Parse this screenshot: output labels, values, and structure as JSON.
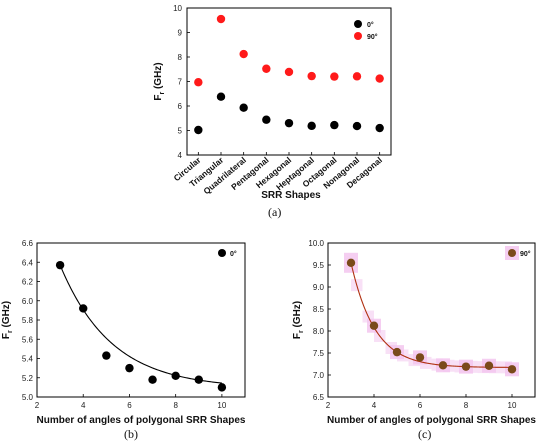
{
  "chart_data": [
    {
      "id": "a",
      "type": "scatter",
      "caption": "(a)",
      "xlabel": "SRR Shapes",
      "ylabel": "F_r (GHz)",
      "categories": [
        "Circular",
        "Triangular",
        "Quadrilateral",
        "Pentagonal",
        "Hexagonal",
        "Heptagonal",
        "Octagonal",
        "Nonagonal",
        "Decagonal"
      ],
      "ylim": [
        4,
        10
      ],
      "yticks": [
        4,
        5,
        6,
        7,
        8,
        9,
        10
      ],
      "grid": false,
      "legend_position": "top-right",
      "series": [
        {
          "name": "0°",
          "color": "#000000",
          "values": [
            5.02,
            6.38,
            5.93,
            5.44,
            5.3,
            5.19,
            5.22,
            5.18,
            5.1
          ]
        },
        {
          "name": "90°",
          "color": "#ff1a1a",
          "values": [
            6.97,
            9.55,
            8.12,
            7.52,
            7.39,
            7.22,
            7.2,
            7.21,
            7.12
          ]
        }
      ]
    },
    {
      "id": "b",
      "type": "scatter",
      "caption": "(b)",
      "xlabel": "Number of angles of polygonal SRR Shapes",
      "ylabel": "F_r (GHz)",
      "xlim": [
        2,
        11
      ],
      "ylim": [
        5.0,
        6.6
      ],
      "xticks": [
        2,
        4,
        6,
        8,
        10
      ],
      "yticks": [
        5.0,
        5.2,
        5.4,
        5.6,
        5.8,
        6.0,
        6.2,
        6.4,
        6.6
      ],
      "grid": false,
      "legend_position": "top-right",
      "series": [
        {
          "name": "0°",
          "color": "#000000",
          "x": [
            3,
            4,
            5,
            6,
            7,
            8,
            9,
            10
          ],
          "y": [
            6.37,
            5.92,
            5.43,
            5.3,
            5.18,
            5.22,
            5.18,
            5.1
          ]
        }
      ],
      "fit": {
        "type": "exponential-decay",
        "color": "#000000",
        "y0": 5.09,
        "a": 1.28,
        "b": 0.45,
        "x0": 3,
        "xrange": [
          3,
          10
        ]
      }
    },
    {
      "id": "c",
      "type": "scatter",
      "caption": "(c)",
      "xlabel": "Number of angles of polygonal SRR Shapes",
      "ylabel": "F_r (GHz)",
      "xlim": [
        2,
        11
      ],
      "ylim": [
        6.5,
        10.0
      ],
      "xticks": [
        2,
        4,
        6,
        8,
        10
      ],
      "yticks": [
        6.5,
        7.0,
        7.5,
        8.0,
        8.5,
        9.0,
        9.5,
        10.0
      ],
      "grid": false,
      "legend_position": "top-right",
      "series": [
        {
          "name": "90°",
          "color": "#7a4a1a",
          "x": [
            3,
            4,
            5,
            6,
            7,
            8,
            9,
            10
          ],
          "y": [
            9.55,
            8.12,
            7.52,
            7.4,
            7.22,
            7.19,
            7.21,
            7.13
          ]
        }
      ],
      "fit": {
        "type": "exponential-decay",
        "color": "#b03010",
        "band_color": "#f3c6ef",
        "y0": 7.17,
        "a": 2.38,
        "b": 0.96,
        "x0": 3,
        "xrange": [
          3,
          10
        ]
      }
    }
  ]
}
